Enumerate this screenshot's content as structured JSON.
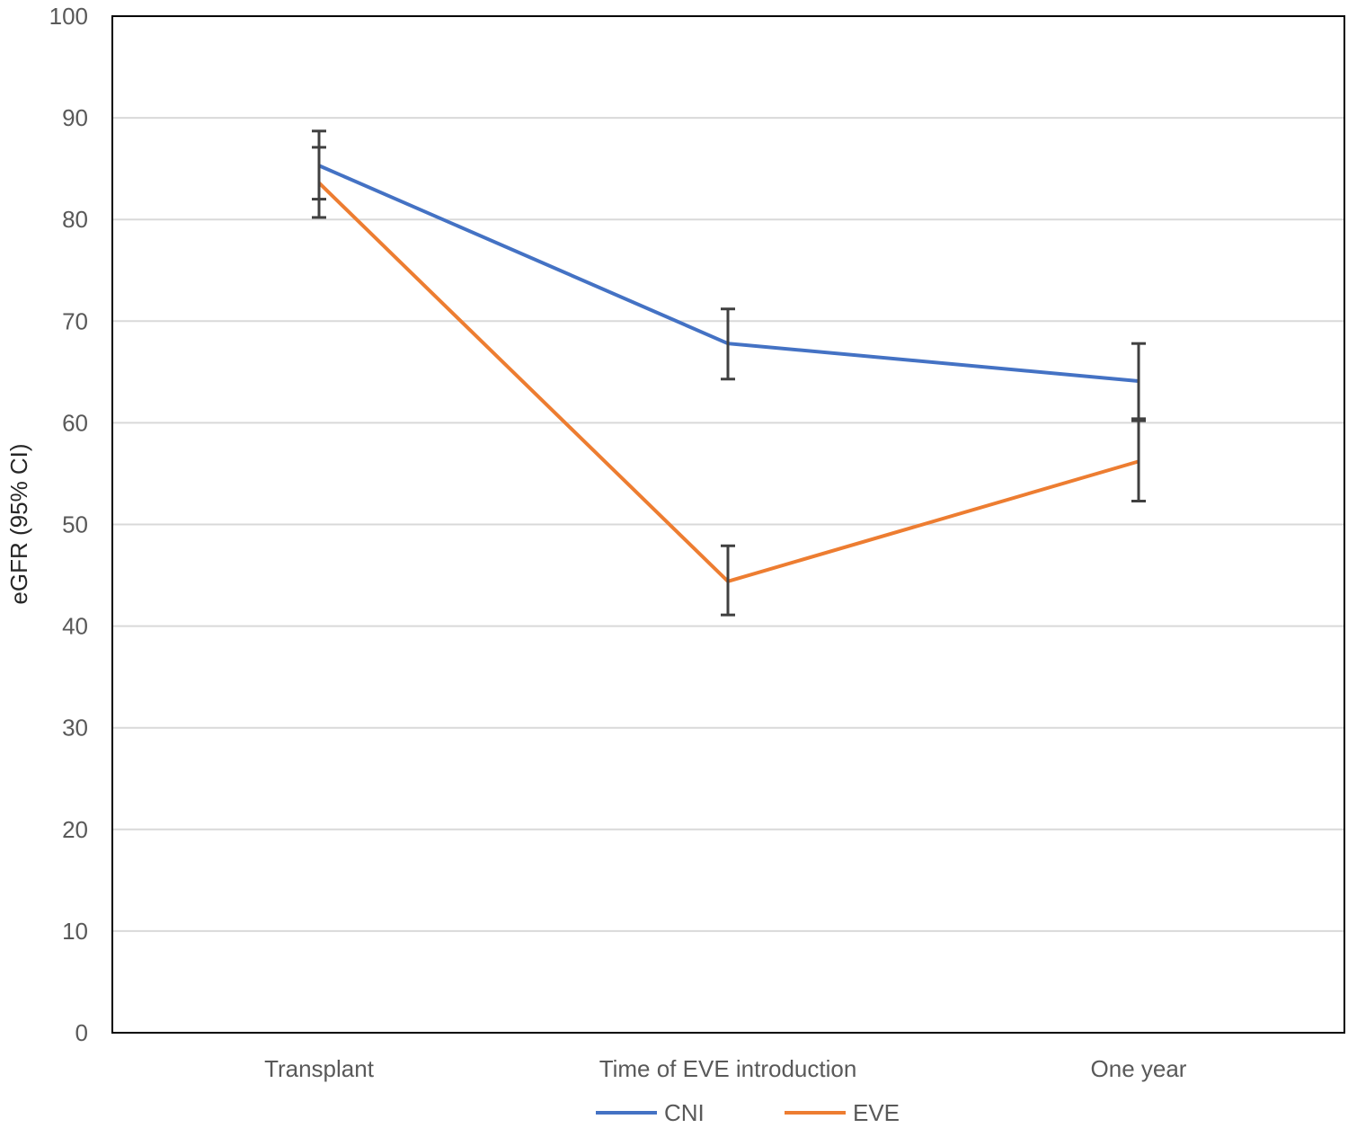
{
  "chart_data": {
    "type": "line",
    "title": "",
    "xlabel": "",
    "ylabel": "eGFR (95% CI)",
    "ylim": [
      0,
      100
    ],
    "y_ticks": [
      "0",
      "10",
      "20",
      "30",
      "40",
      "50",
      "60",
      "70",
      "80",
      "90",
      "100"
    ],
    "categories": [
      "Transplant",
      "Time of EVE introduction",
      "One year"
    ],
    "grid": true,
    "legend_position": "bottom",
    "series": [
      {
        "name": "CNI",
        "color": "#4472C4",
        "values": [
          85.3,
          67.8,
          64.1
        ],
        "ci_lower": [
          82.0,
          64.3,
          60.4
        ],
        "ci_upper": [
          88.7,
          71.2,
          67.8
        ]
      },
      {
        "name": "EVE",
        "color": "#ED7D31",
        "values": [
          83.6,
          44.4,
          56.2
        ],
        "ci_lower": [
          80.2,
          41.1,
          52.3
        ],
        "ci_upper": [
          87.1,
          47.9,
          60.2
        ]
      }
    ]
  }
}
